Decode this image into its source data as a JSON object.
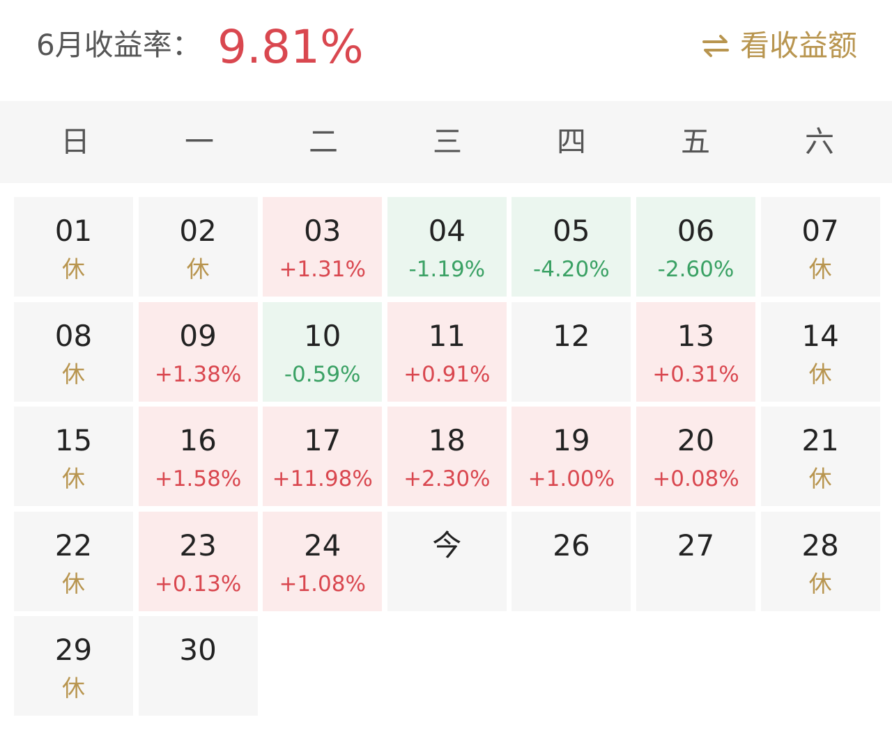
{
  "header": {
    "month_label": "6月收益率：",
    "month_rate": "9.81%",
    "toggle_label": "看收益额",
    "toggle_icon": "swap-arrows-icon"
  },
  "weekdays": [
    "日",
    "一",
    "二",
    "三",
    "四",
    "五",
    "六"
  ],
  "colors": {
    "up": "#d9474f",
    "down": "#3aa164",
    "rest": "#b8954f",
    "up_bg": "#fcebeb",
    "down_bg": "#ebf6ef"
  },
  "days": [
    {
      "day": "01",
      "sub": "休",
      "type": "rest"
    },
    {
      "day": "02",
      "sub": "休",
      "type": "rest"
    },
    {
      "day": "03",
      "sub": "+1.31%",
      "type": "up"
    },
    {
      "day": "04",
      "sub": "-1.19%",
      "type": "down"
    },
    {
      "day": "05",
      "sub": "-4.20%",
      "type": "down"
    },
    {
      "day": "06",
      "sub": "-2.60%",
      "type": "down"
    },
    {
      "day": "07",
      "sub": "休",
      "type": "rest"
    },
    {
      "day": "08",
      "sub": "休",
      "type": "rest"
    },
    {
      "day": "09",
      "sub": "+1.38%",
      "type": "up"
    },
    {
      "day": "10",
      "sub": "-0.59%",
      "type": "down"
    },
    {
      "day": "11",
      "sub": "+0.91%",
      "type": "up"
    },
    {
      "day": "12",
      "sub": "",
      "type": "plain"
    },
    {
      "day": "13",
      "sub": "+0.31%",
      "type": "up"
    },
    {
      "day": "14",
      "sub": "休",
      "type": "rest"
    },
    {
      "day": "15",
      "sub": "休",
      "type": "rest"
    },
    {
      "day": "16",
      "sub": "+1.58%",
      "type": "up"
    },
    {
      "day": "17",
      "sub": "+11.98%",
      "type": "up"
    },
    {
      "day": "18",
      "sub": "+2.30%",
      "type": "up"
    },
    {
      "day": "19",
      "sub": "+1.00%",
      "type": "up"
    },
    {
      "day": "20",
      "sub": "+0.08%",
      "type": "up"
    },
    {
      "day": "21",
      "sub": "休",
      "type": "rest"
    },
    {
      "day": "22",
      "sub": "休",
      "type": "rest"
    },
    {
      "day": "23",
      "sub": "+0.13%",
      "type": "up"
    },
    {
      "day": "24",
      "sub": "+1.08%",
      "type": "up"
    },
    {
      "day": "今",
      "sub": "",
      "type": "plain"
    },
    {
      "day": "26",
      "sub": "",
      "type": "plain"
    },
    {
      "day": "27",
      "sub": "",
      "type": "plain"
    },
    {
      "day": "28",
      "sub": "休",
      "type": "rest"
    },
    {
      "day": "29",
      "sub": "休",
      "type": "rest"
    },
    {
      "day": "30",
      "sub": "",
      "type": "plain"
    }
  ]
}
